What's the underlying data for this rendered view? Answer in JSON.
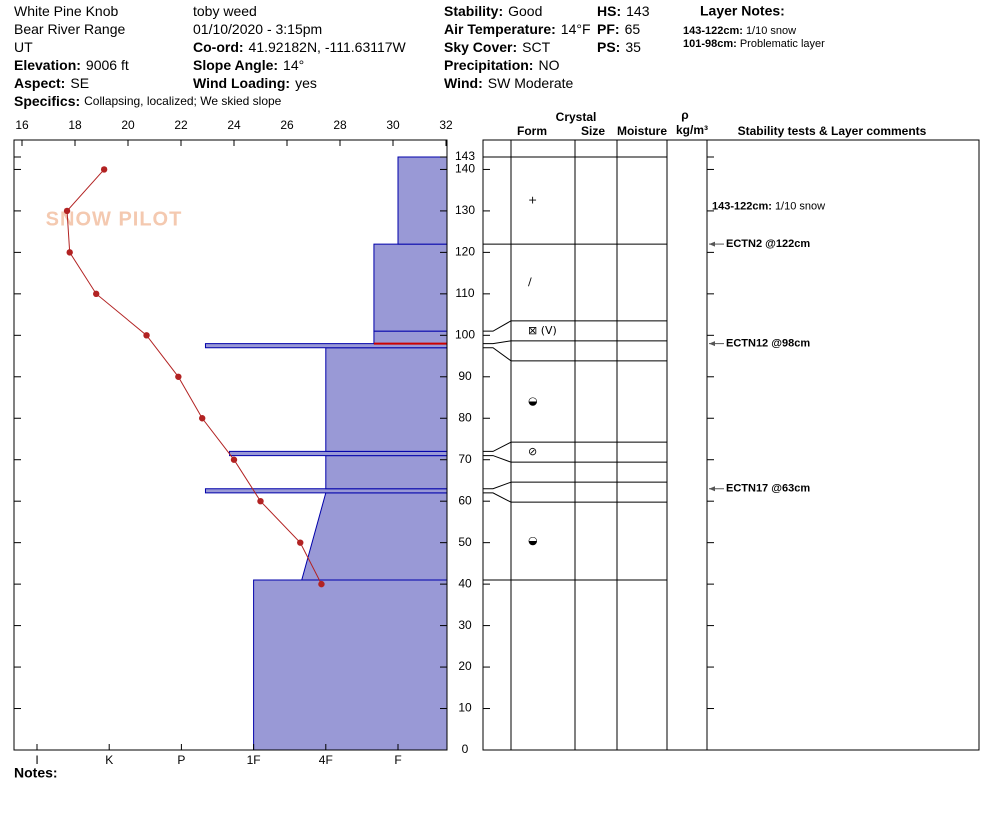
{
  "header": {
    "columns": [
      [
        {
          "value": "White Pine Knob"
        },
        {
          "value": "Bear River Range"
        },
        {
          "value": "UT"
        },
        {
          "label": "Elevation:",
          "value": "9006 ft"
        },
        {
          "label": "Aspect:",
          "value": "SE"
        }
      ],
      [
        {
          "value": "toby weed"
        },
        {
          "value": "01/10/2020 - 3:15pm"
        },
        {
          "label": "Co-ord:",
          "value": "41.92182N, -111.63117W"
        },
        {
          "label": "Slope Angle:",
          "value": "14°"
        },
        {
          "label": "Wind Loading:",
          "value": "yes"
        }
      ],
      [
        {
          "label": "Stability:",
          "value": "Good"
        },
        {
          "label": "Air Temperature:",
          "value": "14°F"
        },
        {
          "label": "Sky Cover:",
          "value": "SCT"
        },
        {
          "label": "Precipitation:",
          "value": "NO"
        },
        {
          "label": "Wind:",
          "value": "SW Moderate"
        }
      ],
      [
        {
          "label": "HS:",
          "value": "143"
        },
        {
          "label": "PF:",
          "value": "65"
        },
        {
          "label": "PS:",
          "value": "35"
        }
      ]
    ],
    "layer_notes": {
      "title": "Layer Notes:",
      "items": [
        {
          "range": "143-122cm:",
          "text": "1/10 snow"
        },
        {
          "range": "101-98cm:",
          "text": "Problematic layer"
        }
      ]
    },
    "specifics": {
      "label": "Specifics:",
      "value": "Collapsing, localized;  We skied slope"
    }
  },
  "notes_label": "Notes:",
  "watermark": "SNOW PILOT",
  "chart_data": {
    "type": "profile",
    "xlim": [
      16,
      32
    ],
    "xticks": [
      16,
      18,
      20,
      22,
      24,
      26,
      28,
      30,
      32
    ],
    "ylim": [
      0,
      143
    ],
    "yticks": [
      0,
      10,
      20,
      30,
      40,
      50,
      60,
      70,
      80,
      90,
      100,
      110,
      120,
      130,
      140,
      143
    ],
    "hardness_ticks": [
      "I",
      "K",
      "P",
      "1F",
      "4F",
      "F"
    ],
    "bar_color": "#9999d6",
    "edge_color": "#0000aa",
    "problem_color": "#cc0000",
    "temperature": {
      "color": "#b22222",
      "heights": [
        140,
        130,
        120,
        110,
        100,
        90,
        80,
        70,
        60,
        50,
        40
      ],
      "temps": [
        19.1,
        17.7,
        17.8,
        18.8,
        20.7,
        21.9,
        22.8,
        24.0,
        25.0,
        26.5,
        27.3
      ]
    },
    "layers": [
      {
        "bottom": 0,
        "top": 41,
        "hardness": "1F"
      },
      {
        "bottom": 41,
        "top": 62,
        "hardness": "4F+",
        "hardness_top": "4F",
        "form": "◒"
      },
      {
        "bottom": 62,
        "top": 63,
        "hardness": "P-"
      },
      {
        "bottom": 63,
        "top": 71,
        "hardness": "4F"
      },
      {
        "bottom": 71,
        "top": 72,
        "hardness": "1F+",
        "form": "⊘"
      },
      {
        "bottom": 72,
        "top": 97,
        "hardness": "4F",
        "form": "◒"
      },
      {
        "bottom": 97,
        "top": 98,
        "hardness": "P-"
      },
      {
        "bottom": 98,
        "top": 101,
        "hardness": "F+",
        "problematic": true,
        "form": "⊠ (V)"
      },
      {
        "bottom": 101,
        "top": 122,
        "hardness": "F+",
        "form": "/"
      },
      {
        "bottom": 122,
        "top": 143,
        "hardness": "F",
        "form": "+",
        "comment": {
          "range": "143-122cm:",
          "text": "1/10 snow"
        }
      }
    ],
    "table_headers": {
      "crystal": "Crystal",
      "form": "Form",
      "size": "Size",
      "moisture": "Moisture",
      "density_symbol": "ρ",
      "density_unit": "kg/m³",
      "comments": "Stability tests & Layer comments"
    },
    "stability_tests": [
      {
        "text": "ECTN2 @122cm",
        "height": 122
      },
      {
        "text": "ECTN12 @98cm",
        "height": 98
      },
      {
        "text": "ECTN17 @63cm",
        "height": 63
      }
    ]
  }
}
